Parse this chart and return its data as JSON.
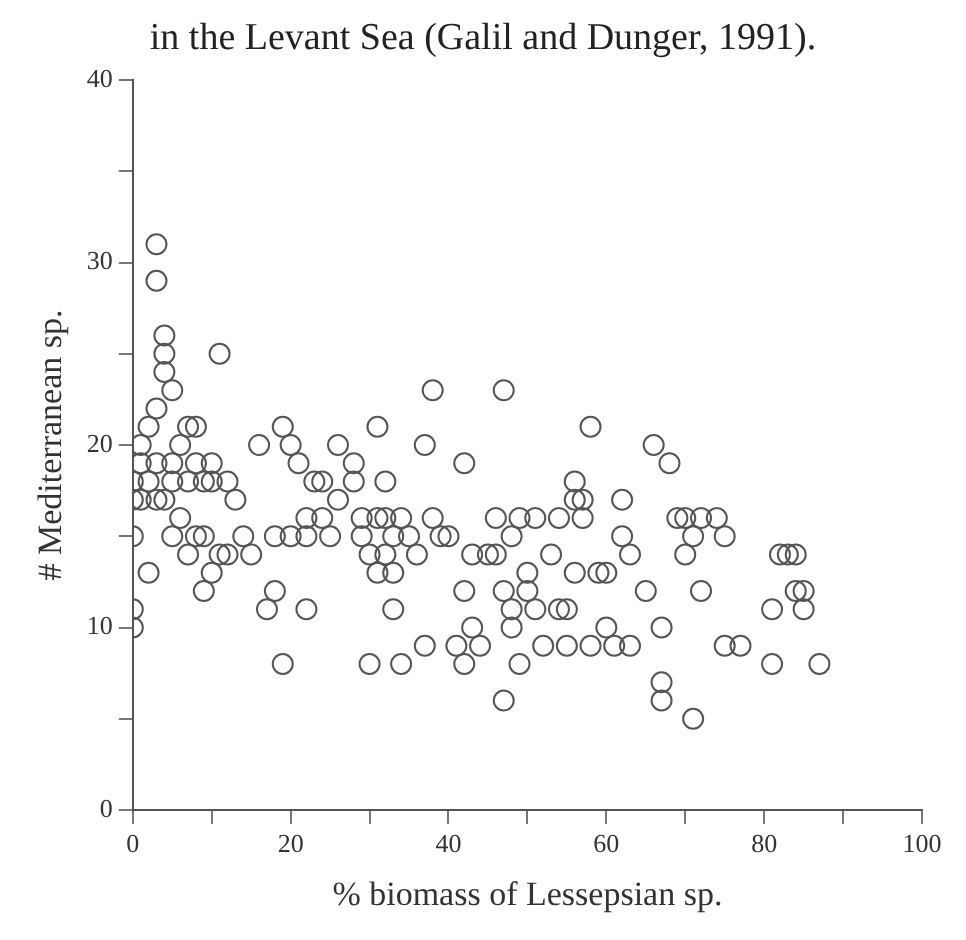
{
  "chart_data": {
    "type": "scatter",
    "annotations": [
      "in the Levant Sea (Galil and Dunger, 1991)."
    ],
    "xlabel": "% biomass of Lessepsian sp.",
    "ylabel": "# Mediterranean sp.",
    "xlim": [
      0,
      100
    ],
    "ylim": [
      0,
      40
    ],
    "xticks": [
      0,
      {
        "value": 10,
        "label": null
      },
      20,
      {
        "value": 30,
        "label": null
      },
      40,
      {
        "value": 50,
        "label": null
      },
      60,
      {
        "value": 70,
        "label": null
      },
      80,
      {
        "value": 90,
        "label": null
      },
      100
    ],
    "yticks": [
      0,
      {
        "value": 5,
        "label": null
      },
      10,
      {
        "value": 15,
        "label": null
      },
      20,
      {
        "value": 25,
        "label": null
      },
      30,
      {
        "value": 35,
        "label": null
      },
      40
    ],
    "marker": "circle",
    "series": [
      {
        "color": "#555555",
        "x": [
          0,
          0,
          0,
          0,
          0,
          1,
          1,
          1,
          2,
          2,
          2,
          3,
          3,
          3,
          3,
          3,
          4,
          4,
          4,
          4,
          5,
          5,
          5,
          5,
          6,
          6,
          7,
          7,
          7,
          8,
          8,
          8,
          9,
          9,
          9,
          10,
          10,
          10,
          11,
          11,
          12,
          12,
          13,
          14,
          15,
          16,
          17,
          18,
          18,
          19,
          19,
          20,
          20,
          21,
          22,
          22,
          22,
          23,
          24,
          24,
          25,
          26,
          26,
          28,
          28,
          29,
          29,
          30,
          30,
          31,
          31,
          31,
          32,
          32,
          32,
          33,
          33,
          33,
          34,
          34,
          35,
          36,
          37,
          37,
          38,
          38,
          39,
          40,
          41,
          42,
          42,
          42,
          43,
          43,
          44,
          45,
          46,
          46,
          47,
          47,
          47,
          48,
          48,
          48,
          49,
          49,
          50,
          50,
          51,
          51,
          52,
          53,
          54,
          54,
          55,
          55,
          56,
          56,
          56,
          57,
          57,
          58,
          58,
          59,
          60,
          60,
          61,
          62,
          62,
          63,
          63,
          65,
          66,
          67,
          67,
          67,
          68,
          69,
          70,
          70,
          71,
          71,
          72,
          72,
          74,
          75,
          75,
          77,
          81,
          81,
          82,
          83,
          84,
          84,
          85,
          85,
          87
        ],
        "values": [
          10,
          11,
          15,
          17,
          18,
          19,
          20,
          17,
          13,
          18,
          21,
          17,
          19,
          29,
          31,
          22,
          26,
          25,
          24,
          17,
          15,
          18,
          19,
          23,
          16,
          20,
          14,
          18,
          21,
          15,
          19,
          21,
          12,
          15,
          18,
          13,
          19,
          18,
          14,
          25,
          14,
          18,
          17,
          15,
          14,
          20,
          11,
          12,
          15,
          21,
          8,
          15,
          20,
          19,
          11,
          15,
          16,
          18,
          16,
          18,
          15,
          20,
          17,
          18,
          19,
          16,
          15,
          14,
          8,
          13,
          16,
          21,
          14,
          18,
          16,
          13,
          15,
          11,
          8,
          16,
          15,
          14,
          9,
          20,
          23,
          16,
          15,
          15,
          9,
          19,
          12,
          8,
          10,
          14,
          9,
          14,
          16,
          14,
          23,
          6,
          12,
          15,
          11,
          10,
          8,
          16,
          13,
          12,
          11,
          16,
          9,
          14,
          16,
          11,
          9,
          11,
          17,
          18,
          13,
          16,
          17,
          9,
          21,
          13,
          13,
          10,
          9,
          17,
          15,
          14,
          9,
          12,
          20,
          10,
          7,
          6,
          19,
          16,
          16,
          14,
          15,
          5,
          16,
          12,
          16,
          15,
          9,
          9,
          8,
          11,
          14,
          14,
          14,
          12,
          12,
          11,
          8
        ]
      }
    ]
  }
}
